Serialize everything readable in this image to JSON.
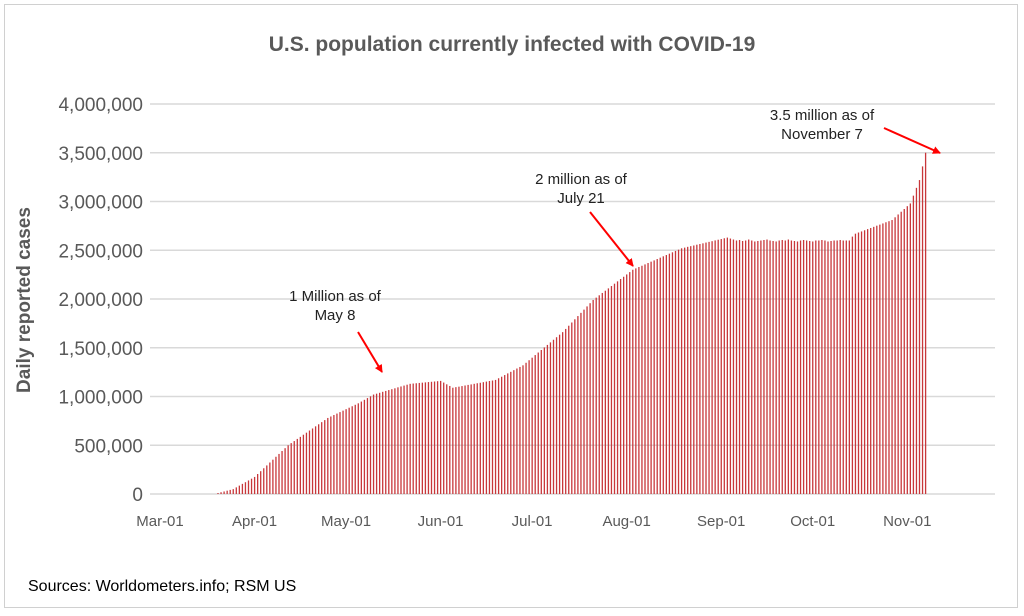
{
  "chart_data": {
    "type": "bar",
    "title": "U.S. population currently infected with COVID-19",
    "xlabel": "",
    "ylabel": "Daily reported cases",
    "ylim": [
      0,
      4000000
    ],
    "grid": true,
    "start_date": "Mar-01",
    "interval": "daily",
    "bar_color": "#c8373a",
    "arrow_color": "#ff0000",
    "x_tick_labels": [
      "Mar-01",
      "Apr-01",
      "May-01",
      "Jun-01",
      "Jul-01",
      "Aug-01",
      "Sep-01",
      "Oct-01",
      "Nov-01"
    ],
    "x_tick_days": [
      0,
      31,
      61,
      92,
      122,
      153,
      184,
      214,
      245
    ],
    "y_ticks": [
      0,
      500000,
      1000000,
      1500000,
      2000000,
      2500000,
      3000000,
      3500000,
      4000000
    ],
    "y_tick_labels": [
      "0",
      "500,000",
      "1,000,000",
      "1,500,000",
      "2,000,000",
      "2,500,000",
      "3,000,000",
      "3,500,000",
      "4,000,000"
    ],
    "values": [
      0,
      0,
      0,
      0,
      0,
      0,
      0,
      0,
      0,
      0,
      0,
      0,
      0,
      0,
      0,
      0,
      0,
      0,
      0,
      10000,
      18000,
      26000,
      34000,
      42000,
      50000,
      68000,
      86000,
      104000,
      121000,
      139000,
      157000,
      175000,
      205000,
      234000,
      264000,
      293000,
      323000,
      352000,
      382000,
      411000,
      441000,
      470000,
      500000,
      522000,
      543000,
      565000,
      586000,
      608000,
      629000,
      651000,
      672000,
      694000,
      715000,
      737000,
      758000,
      780000,
      795000,
      810000,
      825000,
      840000,
      855000,
      870000,
      885000,
      900000,
      915000,
      930000,
      948000,
      966000,
      984000,
      1002000,
      1020000,
      1029000,
      1038000,
      1048000,
      1057000,
      1066000,
      1075000,
      1084000,
      1094000,
      1103000,
      1112000,
      1121000,
      1130000,
      1133000,
      1136000,
      1139000,
      1142000,
      1145000,
      1148000,
      1151000,
      1154000,
      1157000,
      1160000,
      1143000,
      1125000,
      1108000,
      1090000,
      1096000,
      1101000,
      1107000,
      1113000,
      1119000,
      1124000,
      1130000,
      1136000,
      1141000,
      1147000,
      1153000,
      1159000,
      1164000,
      1170000,
      1187000,
      1203000,
      1220000,
      1237000,
      1253000,
      1270000,
      1287000,
      1303000,
      1320000,
      1346000,
      1372000,
      1398000,
      1425000,
      1451000,
      1477000,
      1503000,
      1529000,
      1555000,
      1582000,
      1608000,
      1634000,
      1660000,
      1693000,
      1726000,
      1759000,
      1792000,
      1825000,
      1858000,
      1891000,
      1924000,
      1957000,
      1990000,
      2014000,
      2038000,
      2062000,
      2085000,
      2109000,
      2133000,
      2157000,
      2181000,
      2205000,
      2228000,
      2252000,
      2276000,
      2300000,
      2314000,
      2328000,
      2341000,
      2355000,
      2369000,
      2383000,
      2396000,
      2410000,
      2424000,
      2438000,
      2451000,
      2465000,
      2479000,
      2493000,
      2506000,
      2520000,
      2527000,
      2535000,
      2542000,
      2549000,
      2557000,
      2564000,
      2571000,
      2579000,
      2586000,
      2593000,
      2601000,
      2608000,
      2615000,
      2623000,
      2630000,
      2620000,
      2610000,
      2600000,
      2605000,
      2595000,
      2600000,
      2610000,
      2600000,
      2590000,
      2595000,
      2600000,
      2605000,
      2610000,
      2600000,
      2595000,
      2590000,
      2600000,
      2605000,
      2600000,
      2610000,
      2600000,
      2595000,
      2590000,
      2600000,
      2605000,
      2600000,
      2595000,
      2590000,
      2600000,
      2600000,
      2605000,
      2600000,
      2590000,
      2595000,
      2600000,
      2600000,
      2605000,
      2600000,
      2600000,
      2600000,
      2640000,
      2670000,
      2682000,
      2693000,
      2705000,
      2717000,
      2728000,
      2740000,
      2752000,
      2763000,
      2775000,
      2787000,
      2798000,
      2810000,
      2838000,
      2867000,
      2895000,
      2923000,
      2952000,
      2980000,
      3060000,
      3140000,
      3220000,
      3360000,
      3500000
    ],
    "annotations": [
      {
        "line1": "1 Million as of",
        "line2": "May 8",
        "day": 68,
        "value": 1000000
      },
      {
        "line1": "2 million as of",
        "line2": "July 21",
        "day": 142,
        "value": 2000000
      },
      {
        "line1": "3.5 million as of",
        "line2": "November 7",
        "day": 251,
        "value": 3500000
      }
    ]
  },
  "source": "Sources: Worldometers.info; RSM US"
}
